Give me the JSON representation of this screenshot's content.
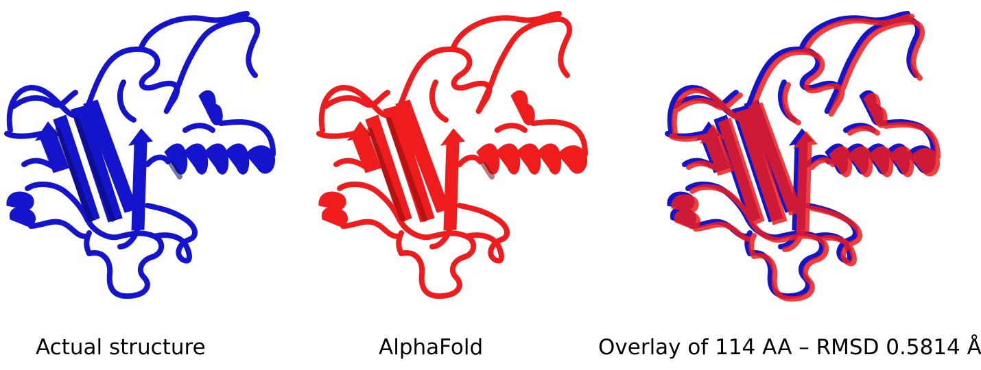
{
  "captions": {
    "actual": "Actual structure",
    "alphafold": "AlphaFold",
    "overlay": "Overlay of 114 AA – RMSD 0.5814 Å"
  },
  "colors": {
    "actual": "#1414cc",
    "actual_shade": "#0a0a66",
    "predicted": "#ee1c1c",
    "predicted_shade": "#8a0a0a"
  }
}
